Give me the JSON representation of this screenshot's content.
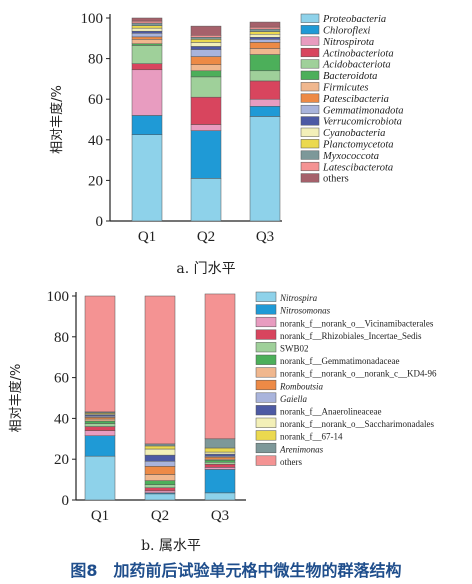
{
  "caption": "图8　加药前后试验单元格中微生物的群落结构",
  "chart_data": [
    {
      "type": "bar",
      "stacked": true,
      "subtitle": "a. 门水平",
      "ylabel": "相对丰度/%",
      "xlabel": "",
      "ylim": [
        0,
        100
      ],
      "yticks": [
        0,
        20,
        40,
        60,
        80,
        100
      ],
      "categories": [
        "Q1",
        "Q2",
        "Q3"
      ],
      "legend_position": "right",
      "series": [
        {
          "name": "Proteobacteria",
          "color": "#8ed2ea",
          "values": [
            42.5,
            21,
            51.5
          ]
        },
        {
          "name": "Chloroflexi",
          "color": "#1f9ad6",
          "values": [
            9.5,
            23.5,
            5
          ]
        },
        {
          "name": "Nitrospirota",
          "color": "#e89cc0",
          "values": [
            22.5,
            3,
            3.5
          ]
        },
        {
          "name": "Actinobacteriota",
          "color": "#d8455e",
          "values": [
            3,
            13.5,
            9
          ]
        },
        {
          "name": "Acidobacteriota",
          "color": "#9fd09a",
          "values": [
            9,
            10,
            5
          ]
        },
        {
          "name": "Bacteroidota",
          "color": "#4caf5a",
          "values": [
            0.8,
            3,
            8
          ]
        },
        {
          "name": "Firmicutes",
          "color": "#f0b78e",
          "values": [
            2.2,
            3,
            3
          ]
        },
        {
          "name": "Patescibacteria",
          "color": "#ed8a46",
          "values": [
            1.2,
            4,
            3
          ]
        },
        {
          "name": "Gemmatimonadota",
          "color": "#a9b4dc",
          "values": [
            1.8,
            3.5,
            1.5
          ]
        },
        {
          "name": "Verrucomicrobiota",
          "color": "#4d5aa4",
          "values": [
            1,
            1.5,
            1
          ]
        },
        {
          "name": "Cyanobacteria",
          "color": "#f3f0b8",
          "values": [
            1.5,
            2,
            1.5
          ]
        },
        {
          "name": "Planctomycetota",
          "color": "#ebd94f",
          "values": [
            1.2,
            1.5,
            1.3
          ]
        },
        {
          "name": "Myxococcota",
          "color": "#7d9899",
          "values": [
            1.3,
            1,
            1.2
          ]
        },
        {
          "name": "Latescibacterota",
          "color": "#f49393",
          "values": [
            1,
            1,
            1
          ]
        },
        {
          "name": "others",
          "color": "#a6616b",
          "values": [
            1.5,
            4.5,
            2.5
          ]
        }
      ]
    },
    {
      "type": "bar",
      "stacked": true,
      "subtitle": "b. 属水平",
      "ylabel": "相对丰度/%",
      "xlabel": "",
      "ylim": [
        0,
        100
      ],
      "yticks": [
        0,
        20,
        40,
        60,
        80,
        100
      ],
      "categories": [
        "Q1",
        "Q2",
        "Q3"
      ],
      "legend_position": "right",
      "series": [
        {
          "name": "Nitrospira",
          "italic": true,
          "color": "#8ed2ea",
          "values": [
            21.5,
            3,
            3.5
          ]
        },
        {
          "name": "Nitrosomonas",
          "italic": true,
          "color": "#1f9ad6",
          "values": [
            10,
            0.5,
            11.5
          ]
        },
        {
          "name": "norank_f__norank_o__Vicinamibacterales",
          "color": "#e89cc0",
          "values": [
            2.5,
            1,
            1
          ]
        },
        {
          "name": "norank_f__Rhizobiales_Incertae_Sedis",
          "color": "#d8455e",
          "values": [
            2,
            1.5,
            1.5
          ]
        },
        {
          "name": "SWB02",
          "color": "#9fd09a",
          "values": [
            1.5,
            1.5,
            1
          ]
        },
        {
          "name": "norank_f__Gemmatimonadaceae",
          "color": "#4caf5a",
          "values": [
            1.2,
            2,
            1
          ]
        },
        {
          "name": "norank_f__norank_o__norank_c__KD4-96",
          "color": "#f0b78e",
          "values": [
            1,
            3,
            0.5
          ]
        },
        {
          "name": "Romboutsia",
          "italic": true,
          "color": "#ed8a46",
          "values": [
            0.8,
            4,
            1
          ]
        },
        {
          "name": "Gaiella",
          "italic": true,
          "color": "#a9b4dc",
          "values": [
            0.6,
            2.5,
            0.5
          ]
        },
        {
          "name": "norank_f__Anaerolineaceae",
          "color": "#4d5aa4",
          "values": [
            0.6,
            3,
            1
          ]
        },
        {
          "name": "norank_f__norank_o__Saccharimonadales",
          "color": "#f3f0b8",
          "values": [
            0.5,
            3,
            1
          ]
        },
        {
          "name": "norank_f__67-14",
          "color": "#ebd94f",
          "values": [
            0.5,
            1.5,
            2
          ]
        },
        {
          "name": "Arenimonas",
          "italic": true,
          "color": "#7d9899",
          "values": [
            0.5,
            1,
            4.5
          ]
        },
        {
          "name": "others",
          "color": "#f49393",
          "values": [
            56.8,
            72.5,
            71
          ]
        }
      ]
    }
  ]
}
